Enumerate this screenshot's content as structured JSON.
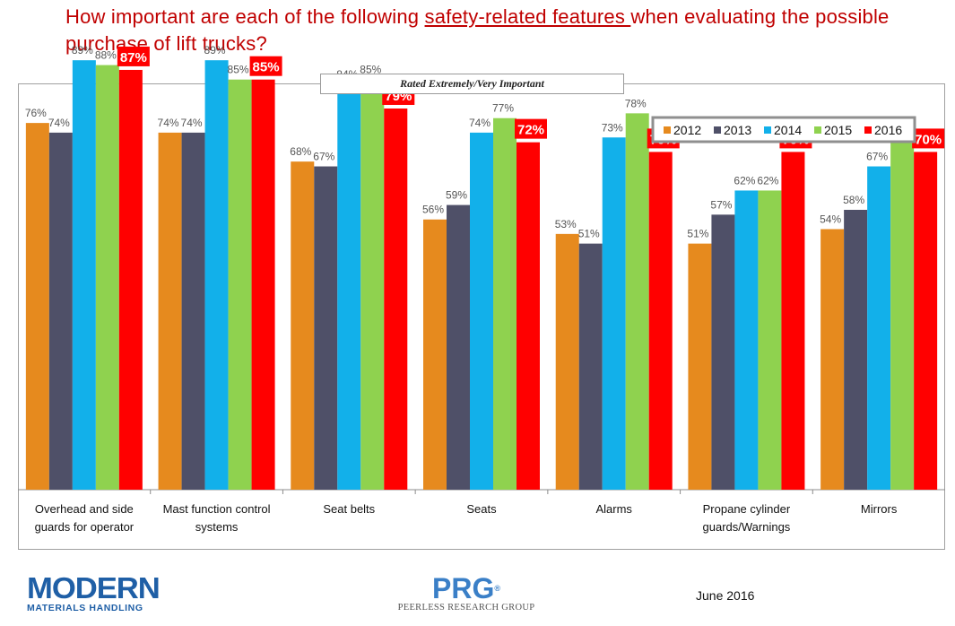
{
  "header": {
    "title_before": "How important are each of the following ",
    "title_highlight": "safety-related features ",
    "title_after": "when evaluating the possible purchase of lift trucks?"
  },
  "chart_data": {
    "type": "bar",
    "subtitle": "Rated Extremely/Very Important",
    "categories": [
      [
        "Overhead and side",
        "guards for operator"
      ],
      [
        "Mast function control",
        "systems"
      ],
      [
        "Seat belts"
      ],
      [
        "Seats"
      ],
      [
        "Alarms"
      ],
      [
        "Propane cylinder",
        "guards/Warnings"
      ],
      [
        "Mirrors"
      ]
    ],
    "series": [
      {
        "name": "2012",
        "color": "#e68a1e",
        "values": [
          76,
          74,
          68,
          56,
          53,
          51,
          54
        ]
      },
      {
        "name": "2013",
        "color": "#4f5068",
        "values": [
          74,
          74,
          67,
          59,
          51,
          57,
          58
        ]
      },
      {
        "name": "2014",
        "color": "#12b0ea",
        "values": [
          89,
          89,
          84,
          74,
          73,
          62,
          67
        ]
      },
      {
        "name": "2015",
        "color": "#8fd24f",
        "values": [
          88,
          85,
          85,
          77,
          78,
          62,
          73
        ]
      },
      {
        "name": "2016",
        "color": "#ff0000",
        "values": [
          87,
          85,
          79,
          72,
          70,
          70,
          70
        ]
      }
    ],
    "data_labels": [
      [
        "76%",
        "74%",
        "89%",
        "88%",
        "87%"
      ],
      [
        "74%",
        "74%",
        "89%",
        "85%",
        "85%"
      ],
      [
        "68%",
        "67%",
        "84%",
        "85%",
        "79%"
      ],
      [
        "56%",
        "59%",
        "74%",
        "77%",
        "72%"
      ],
      [
        "53%",
        "51%",
        "73%",
        "78%",
        "70%"
      ],
      [
        "51%",
        "57%",
        "62%",
        "62%",
        "70%"
      ],
      [
        "54%",
        "58%",
        "67%",
        "73%",
        "70%"
      ]
    ],
    "ylim": [
      0,
      100
    ],
    "grid": false,
    "legend_position": "top-right",
    "highlight_series": "2016"
  },
  "footer": {
    "logo_left_big": "MODERN",
    "logo_left_small": "MATERIALS HANDLING",
    "logo_center_big": "PRG",
    "logo_center_mark": "®",
    "logo_center_small": "PEERLESS RESEARCH GROUP",
    "date": "June 2016"
  }
}
